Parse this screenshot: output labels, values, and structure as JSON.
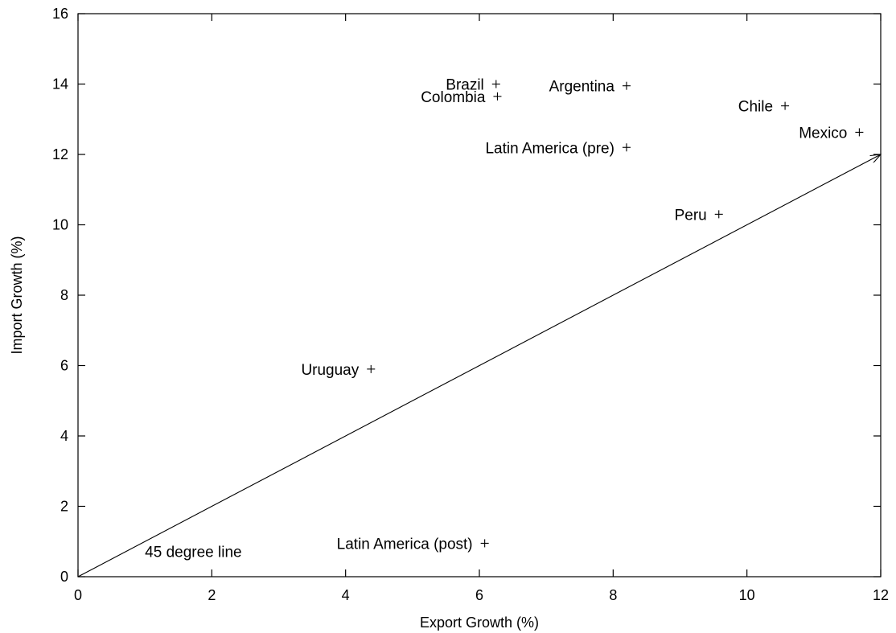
{
  "chart_data": {
    "type": "scatter",
    "xlabel": "Export Growth (%)",
    "ylabel": "Import Growth (%)",
    "xlim": [
      0,
      12
    ],
    "ylim": [
      0,
      16
    ],
    "x_ticks": [
      0,
      2,
      4,
      6,
      8,
      10,
      12
    ],
    "y_ticks": [
      0,
      2,
      4,
      6,
      8,
      10,
      12,
      14,
      16
    ],
    "grid": false,
    "marker": "plus",
    "points": [
      {
        "label": "Brazil",
        "x": 6.25,
        "y": 14.0
      },
      {
        "label": "Colombia",
        "x": 6.27,
        "y": 13.65
      },
      {
        "label": "Argentina",
        "x": 8.2,
        "y": 13.95
      },
      {
        "label": "Chile",
        "x": 10.57,
        "y": 13.38
      },
      {
        "label": "Mexico",
        "x": 11.68,
        "y": 12.63
      },
      {
        "label": "Latin America (pre)",
        "x": 8.2,
        "y": 12.2
      },
      {
        "label": "Peru",
        "x": 9.58,
        "y": 10.3
      },
      {
        "label": "Uruguay",
        "x": 4.38,
        "y": 5.9
      },
      {
        "label": "Latin America (post)",
        "x": 6.08,
        "y": 0.95
      }
    ],
    "reference_line": {
      "label": "45 degree line",
      "from": [
        0,
        0
      ],
      "to": [
        12,
        12
      ],
      "label_at": [
        1.0,
        0.7
      ]
    }
  }
}
